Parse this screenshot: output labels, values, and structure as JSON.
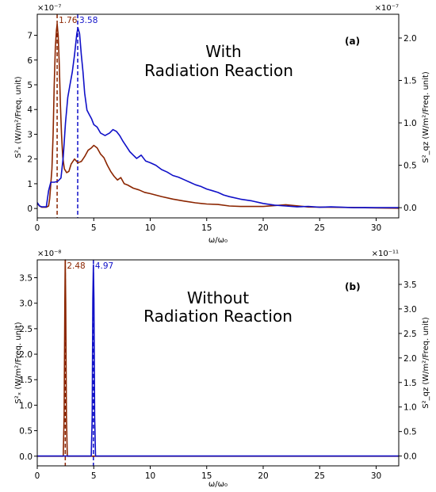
{
  "chart_data": [
    {
      "type": "line",
      "panel_label": "(a)",
      "annotation": [
        "With",
        "Radiation Reaction"
      ],
      "xlabel": "ω/ω₀",
      "ylabel_left": "S²ₓ (W/m²/Freq. unit)",
      "ylabel_right": "S²_qz (W/m²/Freq. unit)",
      "left_multiplier": "×10⁻⁷",
      "right_multiplier": "×10⁻⁷",
      "xlim": [
        0,
        32
      ],
      "ylim_left": [
        -0.38,
        7.85
      ],
      "ylim_right": [
        -0.12,
        2.28
      ],
      "xticks": [
        0,
        5,
        10,
        15,
        20,
        25,
        30
      ],
      "yticks_left": [
        0,
        1,
        2,
        3,
        4,
        5,
        6,
        7
      ],
      "yticks_right": [
        0.0,
        0.5,
        1.0,
        1.5,
        2.0
      ],
      "peak_lines": [
        {
          "x": 1.76,
          "label": "1.76",
          "color": "#8b2500"
        },
        {
          "x": 3.58,
          "label": "3.58",
          "color": "#1010c8"
        }
      ],
      "series": [
        {
          "axis": "left",
          "color": "#8b2500",
          "x": [
            0,
            0.2,
            0.4,
            0.8,
            1.0,
            1.1,
            1.2,
            1.3,
            1.4,
            1.5,
            1.6,
            1.7,
            1.76,
            1.85,
            1.95,
            2.05,
            2.15,
            2.25,
            2.4,
            2.6,
            2.8,
            3.0,
            3.3,
            3.6,
            3.9,
            4.2,
            4.5,
            4.8,
            5.0,
            5.3,
            5.6,
            5.9,
            6.2,
            6.5,
            6.8,
            7.1,
            7.4,
            7.7,
            8.0,
            8.5,
            9.0,
            9.5,
            10,
            11,
            12,
            13,
            14,
            15,
            16,
            17,
            18,
            20,
            22,
            24,
            26,
            28,
            30,
            32
          ],
          "y": [
            0.2,
            0.1,
            0.05,
            0.05,
            0.1,
            0.4,
            1.0,
            1.6,
            3.0,
            5.0,
            6.5,
            7.2,
            7.45,
            7.0,
            5.8,
            4.2,
            3.0,
            2.1,
            1.6,
            1.45,
            1.5,
            1.8,
            2.0,
            1.85,
            1.9,
            2.1,
            2.35,
            2.45,
            2.55,
            2.45,
            2.2,
            2.05,
            1.75,
            1.5,
            1.3,
            1.15,
            1.25,
            1.0,
            0.95,
            0.82,
            0.75,
            0.65,
            0.6,
            0.48,
            0.38,
            0.3,
            0.23,
            0.18,
            0.16,
            0.1,
            0.08,
            0.08,
            0.15,
            0.06,
            0.05,
            0.04,
            0.02,
            0.01
          ]
        },
        {
          "axis": "right",
          "color": "#1010c8",
          "x": [
            0,
            0.2,
            0.4,
            0.8,
            1.0,
            1.2,
            1.5,
            1.8,
            2.1,
            2.3,
            2.5,
            2.7,
            2.9,
            3.1,
            3.3,
            3.5,
            3.6,
            3.75,
            3.9,
            4.05,
            4.2,
            4.4,
            4.6,
            4.8,
            5.0,
            5.3,
            5.6,
            6.0,
            6.4,
            6.7,
            7.0,
            7.3,
            7.6,
            7.9,
            8.2,
            8.5,
            8.8,
            9.2,
            9.6,
            10,
            10.5,
            11,
            11.5,
            12,
            12.5,
            13,
            13.5,
            14,
            14.5,
            15,
            15.5,
            16,
            16.5,
            17,
            18,
            19,
            20,
            21,
            22,
            23,
            24,
            25,
            26,
            27,
            28,
            29,
            30,
            31,
            32
          ],
          "y": [
            0.06,
            0.02,
            0.01,
            0.01,
            0.2,
            0.3,
            0.3,
            0.31,
            0.35,
            0.6,
            1.0,
            1.3,
            1.45,
            1.6,
            1.8,
            2.05,
            2.12,
            2.05,
            1.8,
            1.6,
            1.35,
            1.15,
            1.1,
            1.05,
            0.98,
            0.95,
            0.88,
            0.85,
            0.88,
            0.92,
            0.9,
            0.85,
            0.78,
            0.72,
            0.66,
            0.62,
            0.58,
            0.62,
            0.55,
            0.53,
            0.5,
            0.45,
            0.42,
            0.38,
            0.36,
            0.33,
            0.3,
            0.27,
            0.25,
            0.22,
            0.2,
            0.18,
            0.15,
            0.13,
            0.1,
            0.08,
            0.05,
            0.03,
            0.02,
            0.01,
            0.015,
            0.005,
            0.01,
            0.005,
            0.0,
            0.002,
            0.0,
            0.0,
            0.0
          ]
        }
      ]
    },
    {
      "type": "line",
      "panel_label": "(b)",
      "annotation": [
        "Without",
        "Radiation Reaction"
      ],
      "xlabel": "ω/ω₀",
      "ylabel_left": "S²ₓ (W/m²/Freq. unit)",
      "ylabel_right": "S²_qz (W/m²/Freq. unit)",
      "left_multiplier": "×10⁻⁸",
      "right_multiplier": "×10⁻¹¹",
      "xlim": [
        0,
        32
      ],
      "ylim_left": [
        -0.19,
        3.85
      ],
      "ylim_right": [
        -0.2,
        4.0
      ],
      "xticks": [
        0,
        5,
        10,
        15,
        20,
        25,
        30
      ],
      "yticks_left": [
        0.0,
        0.5,
        1.0,
        1.5,
        2.0,
        2.5,
        3.0,
        3.5
      ],
      "yticks_right": [
        0.0,
        0.5,
        1.0,
        1.5,
        2.0,
        2.5,
        3.0,
        3.5
      ],
      "peak_lines": [
        {
          "x": 2.48,
          "label": "2.48",
          "color": "#8b2500"
        },
        {
          "x": 4.97,
          "label": "4.97",
          "color": "#1010c8"
        }
      ],
      "series": [
        {
          "axis": "left",
          "color": "#8b2500",
          "x": [
            0,
            2.3,
            2.38,
            2.44,
            2.48,
            2.52,
            2.58,
            2.66,
            32
          ],
          "y": [
            0,
            0,
            0.8,
            3.0,
            3.85,
            3.0,
            0.8,
            0,
            0
          ]
        },
        {
          "axis": "right",
          "color": "#1010c8",
          "x": [
            0,
            4.78,
            4.86,
            4.92,
            4.97,
            5.02,
            5.08,
            5.16,
            32
          ],
          "y": [
            0,
            0,
            0.8,
            3.2,
            3.9,
            3.2,
            0.8,
            0,
            0
          ]
        }
      ]
    }
  ]
}
